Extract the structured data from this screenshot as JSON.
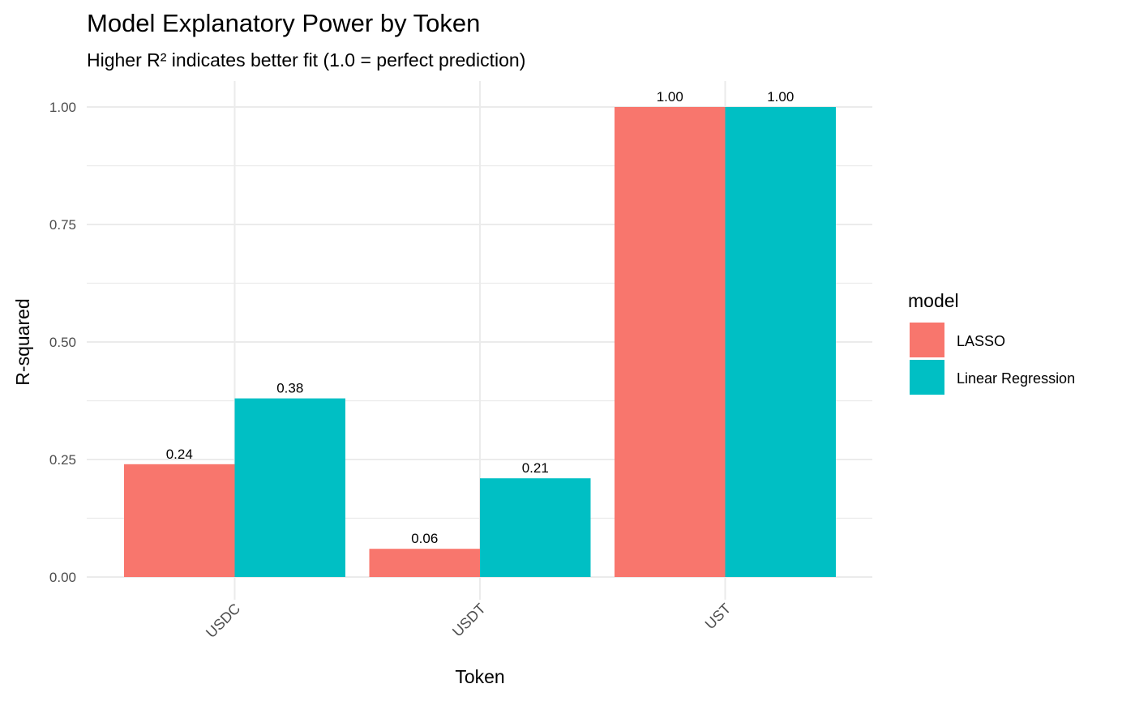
{
  "chart_data": {
    "type": "bar",
    "title": "Model Explanatory Power by Token",
    "subtitle": "Higher R² indicates better fit (1.0 = perfect prediction)",
    "xlabel": "Token",
    "ylabel": "R-squared",
    "categories": [
      "USDC",
      "USDT",
      "UST"
    ],
    "series": [
      {
        "name": "LASSO",
        "values": [
          0.24,
          0.06,
          1.0
        ],
        "labels": [
          "0.24",
          "0.06",
          "1.00"
        ],
        "color": "#F8766D"
      },
      {
        "name": "Linear Regression",
        "values": [
          0.38,
          0.21,
          1.0
        ],
        "labels": [
          "0.38",
          "0.21",
          "1.00"
        ],
        "color": "#00BFC4"
      }
    ],
    "ylim": [
      0,
      1.0
    ],
    "yticks": [
      0,
      0.25,
      0.5,
      0.75,
      1.0
    ],
    "ytick_labels": [
      "0.00",
      "0.25",
      "0.50",
      "0.75",
      "1.00"
    ],
    "grid": true,
    "legend": {
      "title": "model",
      "position": "right"
    }
  }
}
